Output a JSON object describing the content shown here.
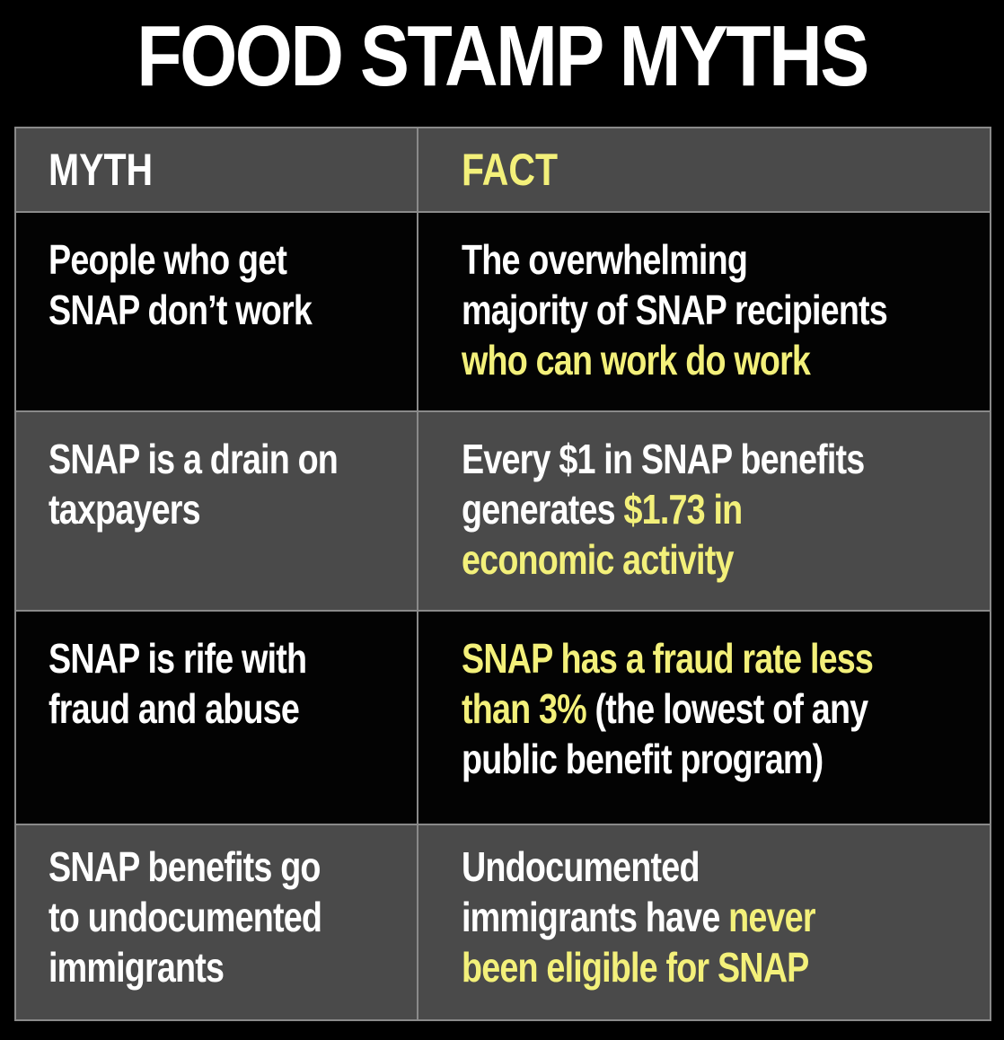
{
  "title": "FOOD STAMP MYTHS",
  "colors": {
    "background": "#000000",
    "gray_row": "#4a4a4a",
    "border": "#8a8a8a",
    "highlight": "#f3f07a",
    "text": "#ffffff"
  },
  "header": {
    "myth": "MYTH",
    "fact": "FACT"
  },
  "rows": [
    {
      "myth": [
        "People who get",
        "SNAP don’t work"
      ],
      "fact": [
        {
          "white": "The overwhelming",
          "yellow": ""
        },
        {
          "white": "majority of SNAP recipients",
          "yellow": ""
        },
        {
          "white": "",
          "yellow": "who can work do work"
        }
      ]
    },
    {
      "myth": [
        "SNAP is a drain on",
        "taxpayers"
      ],
      "fact": [
        {
          "white": "Every $1 in SNAP benefits",
          "yellow": ""
        },
        {
          "white": "generates ",
          "yellow": "$1.73 in"
        },
        {
          "white": "",
          "yellow": "economic activity"
        }
      ]
    },
    {
      "myth": [
        "SNAP is rife with",
        "fraud and abuse"
      ],
      "fact": [
        {
          "white": "",
          "yellow": "SNAP has a fraud rate less"
        },
        {
          "white": "",
          "yellow": "than 3%",
          "white2": " (the lowest of any"
        },
        {
          "white": "public benefit program)",
          "yellow": ""
        }
      ]
    },
    {
      "myth": [
        "SNAP benefits go",
        "to undocumented",
        "immigrants"
      ],
      "fact": [
        {
          "white": "Undocumented",
          "yellow": ""
        },
        {
          "white": "immigrants have ",
          "yellow": "never"
        },
        {
          "white": "",
          "yellow": "been eligible for SNAP"
        }
      ]
    }
  ]
}
